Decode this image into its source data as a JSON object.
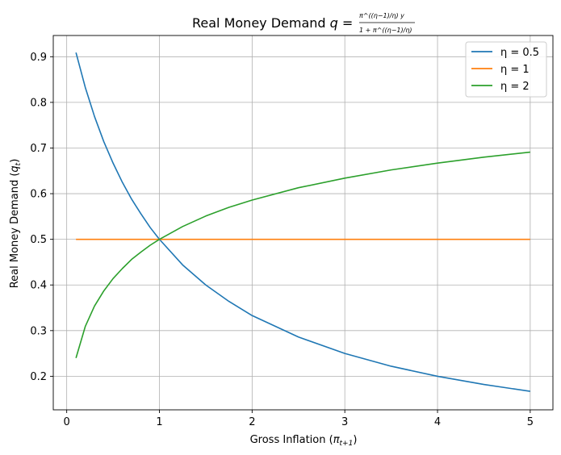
{
  "chart_data": {
    "type": "line",
    "title_main": "Real Money Demand ",
    "title_math_lhs": "q = ",
    "title_num": "π^((η−1)/η) y",
    "title_den": "1 + π^((η−1)/η)",
    "xlabel_main": "Gross Inflation (",
    "xlabel_math": "π",
    "xlabel_sub": "t+1",
    "xlabel_close": ")",
    "ylabel_main": "Real Money Demand (",
    "ylabel_math": "q",
    "ylabel_sub": "t",
    "ylabel_close": ")",
    "xlim": [
      -0.145,
      5.245
    ],
    "ylim": [
      0.1265,
      0.9465
    ],
    "x_range": [
      0.1,
      5.0
    ],
    "xticks": [
      0,
      1,
      2,
      3,
      4,
      5
    ],
    "yticks": [
      0.2,
      0.3,
      0.4,
      0.5,
      0.6,
      0.7,
      0.8,
      0.9
    ],
    "xtick_labels": [
      "0",
      "1",
      "2",
      "3",
      "4",
      "5"
    ],
    "ytick_labels": [
      "0.2",
      "0.3",
      "0.4",
      "0.5",
      "0.6",
      "0.7",
      "0.8",
      "0.9"
    ],
    "grid": true,
    "legend_position": "top-right",
    "series": [
      {
        "name": "η = 0.5",
        "color": "#1f77b4",
        "x": [
          0.1,
          0.2,
          0.3,
          0.4,
          0.5,
          0.6,
          0.7,
          0.8,
          0.9,
          1.0,
          1.25,
          1.5,
          1.75,
          2.0,
          2.5,
          3.0,
          3.5,
          4.0,
          4.5,
          5.0
        ],
        "y": [
          0.909,
          0.833,
          0.769,
          0.714,
          0.667,
          0.625,
          0.588,
          0.556,
          0.526,
          0.5,
          0.444,
          0.4,
          0.364,
          0.333,
          0.286,
          0.25,
          0.222,
          0.2,
          0.182,
          0.167
        ]
      },
      {
        "name": "η = 1",
        "color": "#ff7f0e",
        "x": [
          0.1,
          5.0
        ],
        "y": [
          0.5,
          0.5
        ]
      },
      {
        "name": "η = 2",
        "color": "#2ca02c",
        "x": [
          0.1,
          0.2,
          0.3,
          0.4,
          0.5,
          0.6,
          0.7,
          0.8,
          0.9,
          1.0,
          1.25,
          1.5,
          1.75,
          2.0,
          2.5,
          3.0,
          3.5,
          4.0,
          4.5,
          5.0
        ],
        "y": [
          0.24,
          0.309,
          0.354,
          0.387,
          0.414,
          0.436,
          0.456,
          0.472,
          0.487,
          0.5,
          0.528,
          0.551,
          0.57,
          0.586,
          0.613,
          0.634,
          0.652,
          0.667,
          0.68,
          0.691
        ]
      }
    ]
  }
}
